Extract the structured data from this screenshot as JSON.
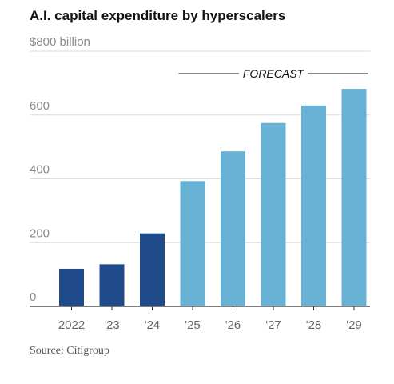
{
  "chart_data": {
    "type": "bar",
    "title": "A.I. capital expenditure by hyperscalers",
    "categories": [
      "2022",
      "'23",
      "'24",
      "'25",
      "'26",
      "'27",
      "'28",
      "'29"
    ],
    "values": [
      118,
      132,
      229,
      393,
      486,
      575,
      630,
      682
    ],
    "y_ticks": [
      {
        "value": 0,
        "label": "0"
      },
      {
        "value": 200,
        "label": "200"
      },
      {
        "value": 400,
        "label": "400"
      },
      {
        "value": 600,
        "label": "600"
      },
      {
        "value": 800,
        "label": "$800 billion"
      }
    ],
    "ylim": [
      0,
      800
    ],
    "grid": true,
    "forecast_label": "FORECAST",
    "forecast_start_index": 3,
    "colors": {
      "actual": "#1f4b8a",
      "forecast": "#67b1d5",
      "grid": "#dcdcdc",
      "axis": "#333333"
    },
    "source": "Source: Citigroup"
  }
}
